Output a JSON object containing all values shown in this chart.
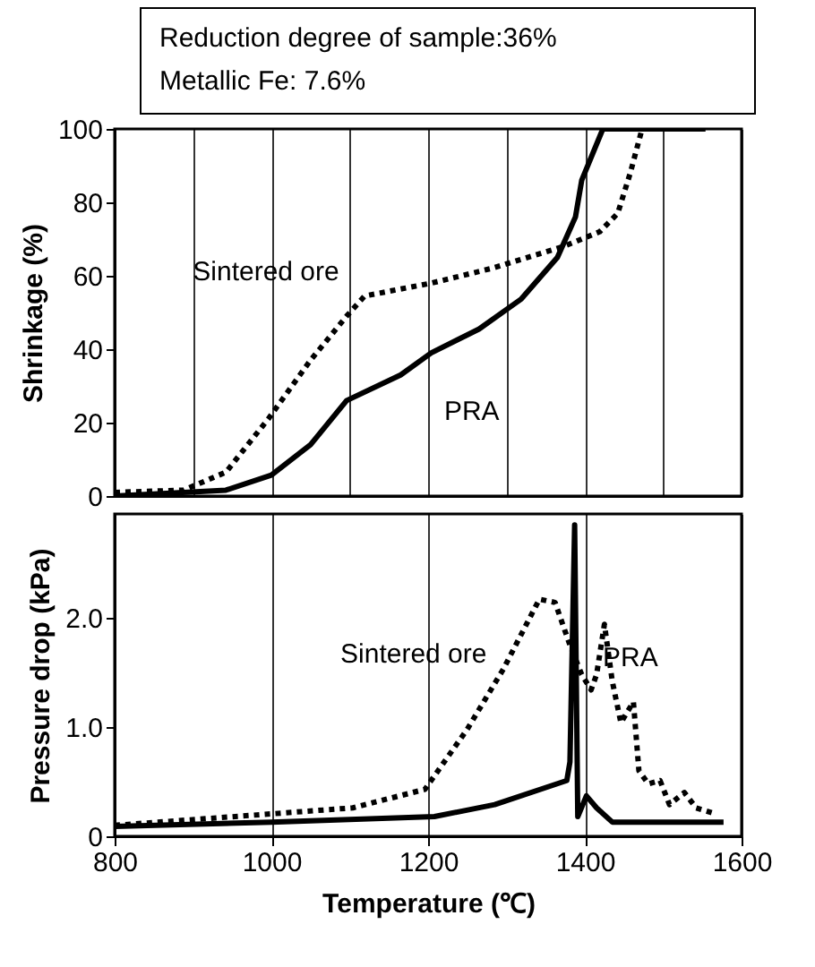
{
  "chart_data": [
    {
      "type": "line",
      "ylabel": "Shrinkage (%)",
      "annotations": [
        "Reduction degree of sample:36%",
        "Metallic Fe: 7.6%",
        {
          "text": "Sintered ore",
          "x": 1096,
          "y": 49
        },
        {
          "text": "PRA",
          "x": 1130,
          "y": 30
        }
      ],
      "xlim": [
        800,
        1600
      ],
      "xticks": [
        800,
        900,
        1000,
        1100,
        1200,
        1300,
        1400,
        1500,
        1600
      ],
      "ylim": [
        0,
        100
      ],
      "yticks": [
        0,
        20,
        40,
        60,
        80,
        100
      ],
      "grid": "x",
      "tick_labels": "y",
      "series": [
        {
          "color": "#000000",
          "line_style": "dotted",
          "x": [
            800,
            888,
            942,
            996,
            1050,
            1096,
            1119,
            1204,
            1281,
            1373,
            1419,
            1442,
            1458,
            1473,
            1554
          ],
          "values": [
            1,
            1.6,
            6.5,
            21,
            37,
            49,
            54.5,
            58,
            62,
            68,
            72,
            77,
            88,
            100,
            100
          ]
        },
        {
          "color": "#000000",
          "line_style": "solid",
          "x": [
            800,
            942,
            1000,
            1050,
            1096,
            1165,
            1204,
            1265,
            1319,
            1365,
            1388,
            1396,
            1423,
            1554
          ],
          "values": [
            0,
            1.6,
            5.7,
            14,
            26,
            33,
            39,
            45.5,
            53.7,
            65,
            76,
            86,
            100,
            100
          ]
        }
      ]
    },
    {
      "type": "line",
      "xlabel": "Temperature (℃)",
      "ylabel": "Pressure drop (kPa)",
      "annotations": [
        {
          "text": "Sintered ore",
          "x": 1250,
          "y": 0.98
        },
        {
          "text": "PRA",
          "x": 1385,
          "y": 2.2
        }
      ],
      "xlim": [
        800,
        1600
      ],
      "xticks": [
        800,
        1000,
        1200,
        1400,
        1600
      ],
      "ylim": [
        0,
        2.95
      ],
      "yticks": [
        0,
        {
          "value": 1,
          "label": "1.0"
        },
        {
          "value": 2,
          "label": "2.0"
        }
      ],
      "grid": "x",
      "series": [
        {
          "color": "#000000",
          "line_style": "dotted",
          "x": [
            800,
            1104,
            1196,
            1250,
            1296,
            1342,
            1362,
            1381,
            1396,
            1408,
            1415,
            1425,
            1435,
            1446,
            1462,
            1469,
            1481,
            1496,
            1508,
            1527,
            1542,
            1565
          ],
          "values": [
            0.1,
            0.26,
            0.43,
            0.98,
            1.53,
            2.17,
            2.14,
            1.75,
            1.48,
            1.34,
            1.48,
            1.94,
            1.42,
            1.04,
            1.23,
            0.6,
            0.48,
            0.51,
            0.29,
            0.4,
            0.26,
            0.21
          ]
        },
        {
          "color": "#000000",
          "line_style": "solid",
          "x": [
            800,
            1000,
            1208,
            1285,
            1377,
            1381,
            1387,
            1391,
            1402,
            1415,
            1435,
            1577
          ],
          "values": [
            0.09,
            0.13,
            0.18,
            0.29,
            0.51,
            0.68,
            2.85,
            0.18,
            0.37,
            0.26,
            0.13,
            0.13
          ]
        }
      ]
    }
  ]
}
